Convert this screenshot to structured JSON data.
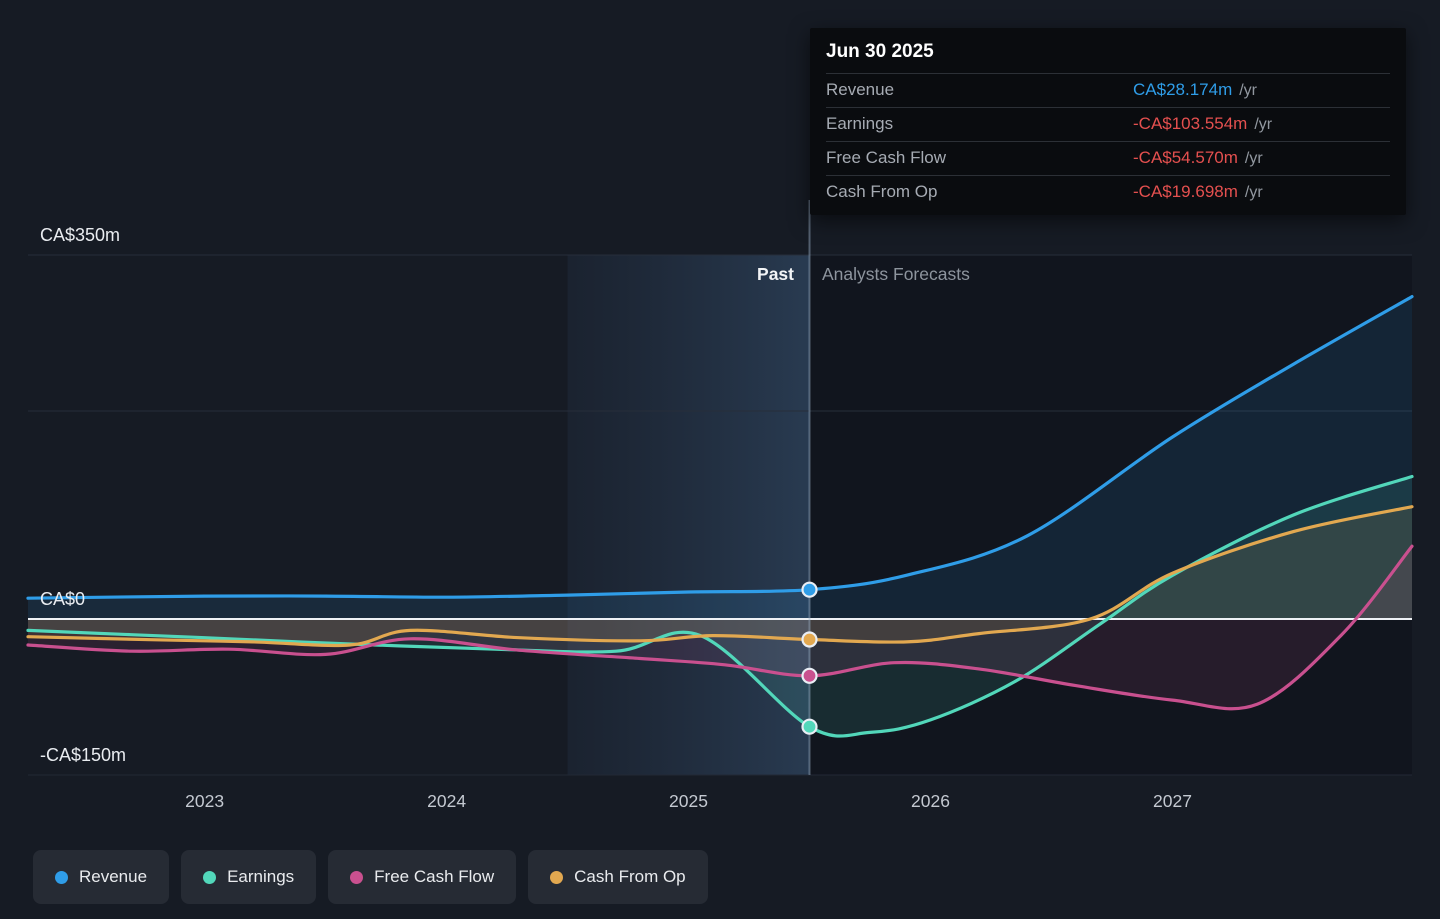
{
  "tooltip": {
    "title": "Jun 30 2025",
    "rows": [
      {
        "label": "Revenue",
        "value": "CA$28.174m",
        "suffix": "/yr",
        "value_color": "#2f9de8"
      },
      {
        "label": "Earnings",
        "value": "-CA$103.554m",
        "suffix": "/yr",
        "value_color": "#e4504f"
      },
      {
        "label": "Free Cash Flow",
        "value": "-CA$54.570m",
        "suffix": "/yr",
        "value_color": "#e4504f"
      },
      {
        "label": "Cash From Op",
        "value": "-CA$19.698m",
        "suffix": "/yr",
        "value_color": "#e4504f"
      }
    ]
  },
  "annotations": {
    "past": "Past",
    "forecast": "Analysts Forecasts"
  },
  "legend": {
    "items": [
      {
        "label": "Revenue",
        "color": "#2f9de8"
      },
      {
        "label": "Earnings",
        "color": "#52d7ba"
      },
      {
        "label": "Free Cash Flow",
        "color": "#c9508f"
      },
      {
        "label": "Cash From Op",
        "color": "#e2a850"
      }
    ]
  },
  "chart_data": {
    "type": "line",
    "title": "Past and forecast Revenue, Earnings, Free Cash Flow and Cash From Op",
    "y_unit": "CA$m",
    "x_domain": [
      2022.27,
      2027.99
    ],
    "y_domain": [
      -150,
      350
    ],
    "divider_x": 2025.5,
    "highlight_band": [
      2024.5,
      2025.5
    ],
    "x_ticks": [
      2023,
      2024,
      2025,
      2026,
      2027
    ],
    "y_gridlines": [
      350,
      200
    ],
    "y_tick_labels": [
      {
        "value": 350,
        "label": "CA$350m"
      },
      {
        "value": 0,
        "label": "CA$0"
      },
      {
        "value": -150,
        "label": "-CA$150m"
      }
    ],
    "legend_position": "bottom-left",
    "series": [
      {
        "name": "Revenue",
        "color": "#2f9de8",
        "x": [
          2022.27,
          2023,
          2023.5,
          2024,
          2024.5,
          2025,
          2025.5,
          2025.9,
          2026.4,
          2027,
          2027.5,
          2027.99
        ],
        "y": [
          20,
          22,
          22,
          21,
          23,
          26,
          28.174,
          42,
          80,
          175,
          245,
          310
        ]
      },
      {
        "name": "Earnings",
        "color": "#52d7ba",
        "x": [
          2022.27,
          2023,
          2023.6,
          2024.2,
          2024.7,
          2025.05,
          2025.5,
          2025.75,
          2026,
          2026.35,
          2026.7,
          2027,
          2027.5,
          2027.99
        ],
        "y": [
          -11,
          -18,
          -24,
          -29,
          -31,
          -16,
          -103.554,
          -109,
          -97,
          -60,
          -5,
          42,
          100,
          137
        ]
      },
      {
        "name": "Free Cash Flow",
        "color": "#c9508f",
        "x": [
          2022.27,
          2022.7,
          2023.1,
          2023.5,
          2023.85,
          2024.3,
          2024.8,
          2025.15,
          2025.5,
          2025.85,
          2026.2,
          2026.6,
          2027,
          2027.35,
          2027.7,
          2027.99
        ],
        "y": [
          -25,
          -31,
          -29,
          -34,
          -19,
          -30,
          -38,
          -44,
          -54.57,
          -42,
          -48,
          -64,
          -78,
          -82,
          -15,
          70
        ]
      },
      {
        "name": "Cash From Op",
        "color": "#e2a850",
        "x": [
          2022.27,
          2022.8,
          2023.2,
          2023.6,
          2023.85,
          2024.3,
          2024.8,
          2025.1,
          2025.5,
          2025.9,
          2026.2,
          2026.66,
          2027,
          2027.5,
          2027.99
        ],
        "y": [
          -17,
          -20,
          -22,
          -25,
          -11,
          -18,
          -21,
          -16,
          -19.698,
          -22,
          -14,
          0,
          44,
          84,
          108
        ]
      }
    ],
    "markers": [
      {
        "series": "Revenue",
        "x": 2025.5,
        "y": 28.174
      },
      {
        "series": "Earnings",
        "x": 2025.5,
        "y": -103.554
      },
      {
        "series": "Free Cash Flow",
        "x": 2025.5,
        "y": -54.57
      },
      {
        "series": "Cash From Op",
        "x": 2025.5,
        "y": -19.698
      }
    ]
  }
}
